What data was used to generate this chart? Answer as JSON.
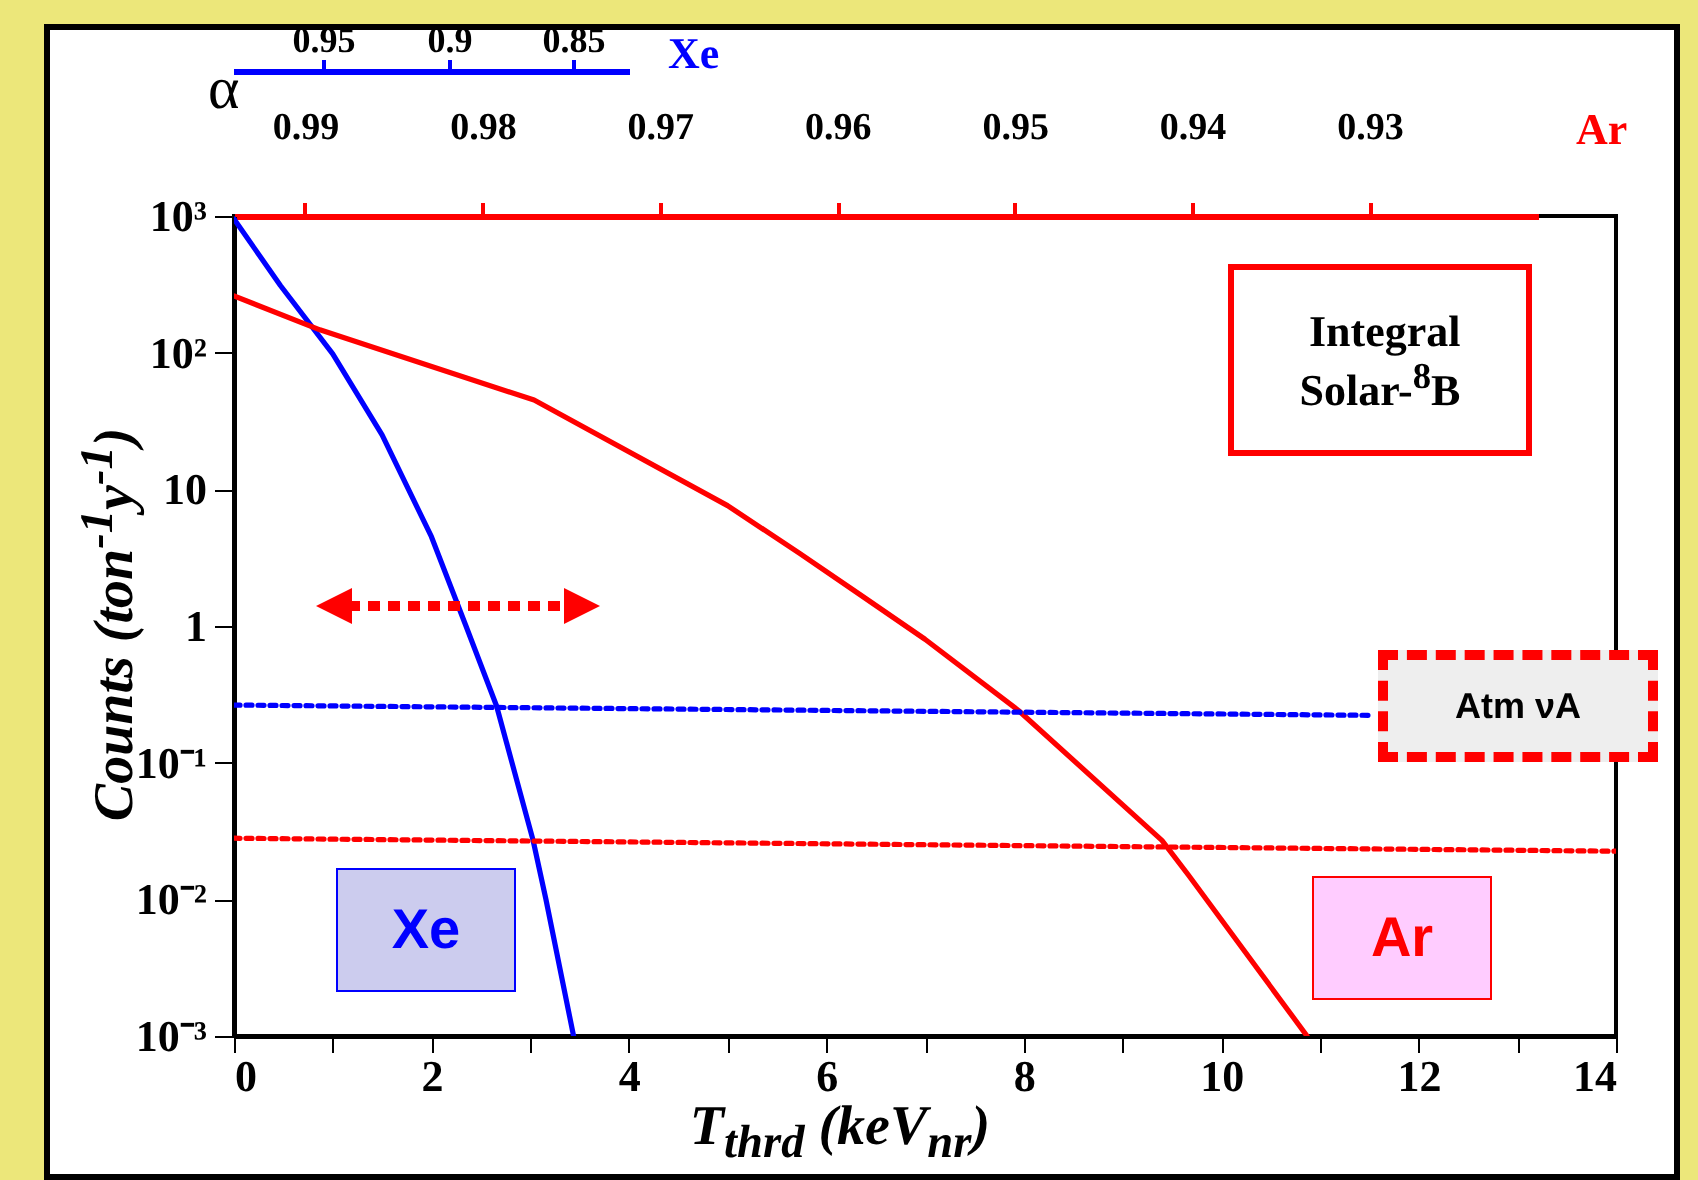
{
  "chart_data": {
    "type": "line",
    "xlabel": "T$_{thrd}$ (keV$_{nr}$)",
    "ylabel": "Counts (ton$^{-1}$y$^{-1}$)",
    "log": "y",
    "xlim": [
      0,
      14
    ],
    "xticks": [
      0,
      {
        "value": 1,
        "label": null
      },
      2,
      {
        "value": 3,
        "label": null
      },
      4,
      {
        "value": 5,
        "label": null
      },
      6,
      {
        "value": 7,
        "label": null
      },
      8,
      {
        "value": 9,
        "label": null
      },
      10,
      {
        "value": 11,
        "label": null
      },
      12,
      {
        "value": 13,
        "label": null
      },
      14
    ],
    "ylim": [
      0.001,
      1000
    ],
    "yticks": [
      {
        "value": 0.001,
        "label": "10⁻³"
      },
      {
        "value": 0.01,
        "label": "10⁻²"
      },
      {
        "value": 0.1,
        "label": "10⁻¹"
      },
      {
        "value": 1,
        "label": "1"
      },
      {
        "value": 10,
        "label": "10"
      },
      {
        "value": 100,
        "label": "10²"
      },
      {
        "value": 1000,
        "label": "10³"
      }
    ],
    "x2label": "Ar",
    "x2lim": [
      0.994,
      0.9205
    ],
    "x2ticks": [
      0.99,
      0.98,
      0.97,
      0.96,
      0.95,
      0.94,
      0.93
    ],
    "annotations": [
      "α",
      "Integral\nSolar-$^{8}$B",
      "Atm νA",
      "0.95",
      "0.9",
      "0.85",
      "Xe"
    ],
    "series": [
      {
        "name": "Xe",
        "color": "#0000ff",
        "x": [
          0,
          0.47,
          1,
          1.5,
          2,
          2.35,
          2.66,
          3.03,
          3.16,
          3.44
        ],
        "values": [
          950,
          310,
          98,
          25,
          4.5,
          1,
          0.26,
          0.027,
          0.01,
          0.001
        ]
      },
      {
        "name": "Ar",
        "color": "#ff0000",
        "x": [
          0,
          0.87,
          3.04,
          5,
          5.73,
          6.34,
          7,
          7.95,
          9.4,
          9.67,
          10.87
        ],
        "values": [
          260,
          147,
          45,
          7.6,
          3.4,
          1.7,
          0.8,
          0.24,
          0.027,
          0.015,
          0.001
        ]
      },
      {
        "color": "#0000ff",
        "line_style": "dotted",
        "x": [
          0,
          11.5
        ],
        "values": [
          0.264,
          0.222
        ]
      },
      {
        "color": "#ff0000",
        "line_style": "dotted",
        "x": [
          0,
          14
        ],
        "values": [
          0.028,
          0.0225
        ]
      }
    ]
  }
}
